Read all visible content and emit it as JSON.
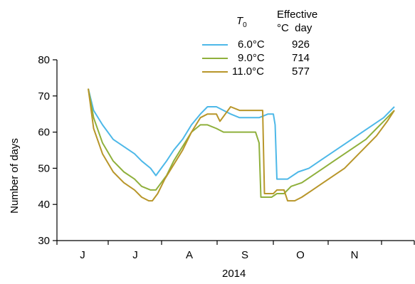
{
  "chart_data": {
    "type": "line",
    "xlabel": "2014",
    "ylabel": "Number of days",
    "ylim": [
      30,
      80
    ],
    "yticks": [
      30,
      40,
      50,
      60,
      70,
      80
    ],
    "x_tick_labels": [
      "J",
      "J",
      "A",
      "S",
      "O",
      "N"
    ],
    "grid": false,
    "legend_placement": "top-center",
    "legend_header": {
      "t0_symbol": "T",
      "t0_subscript": "0",
      "effective_line1": "Effective",
      "effective_line2": "°C  day"
    },
    "series": [
      {
        "name": "6.0°C",
        "effective_degree_days": "926",
        "color": "#4db8e8",
        "points": [
          [
            0,
            72
          ],
          [
            3,
            66
          ],
          [
            8,
            62
          ],
          [
            14,
            58
          ],
          [
            20,
            56
          ],
          [
            26,
            54
          ],
          [
            30,
            52
          ],
          [
            35,
            50
          ],
          [
            38,
            48
          ],
          [
            41,
            50
          ],
          [
            44,
            52
          ],
          [
            48,
            55
          ],
          [
            53,
            58
          ],
          [
            58,
            62
          ],
          [
            63,
            65
          ],
          [
            67,
            67
          ],
          [
            72,
            67
          ],
          [
            76,
            66
          ],
          [
            80,
            65
          ],
          [
            85,
            64
          ],
          [
            90,
            64
          ],
          [
            96,
            64
          ],
          [
            101,
            65
          ],
          [
            104,
            65
          ],
          [
            105,
            62
          ],
          [
            106,
            47
          ],
          [
            112,
            47
          ],
          [
            118,
            49
          ],
          [
            124,
            50
          ],
          [
            130,
            52
          ],
          [
            136,
            54
          ],
          [
            142,
            56
          ],
          [
            148,
            58
          ],
          [
            154,
            60
          ],
          [
            160,
            62
          ],
          [
            166,
            64
          ],
          [
            172,
            67
          ]
        ]
      },
      {
        "name": "9.0°C",
        "effective_degree_days": "714",
        "color": "#8fb03c",
        "points": [
          [
            0,
            72
          ],
          [
            3,
            64
          ],
          [
            8,
            57
          ],
          [
            14,
            52
          ],
          [
            20,
            49
          ],
          [
            26,
            47
          ],
          [
            30,
            45
          ],
          [
            35,
            44
          ],
          [
            38,
            44
          ],
          [
            41,
            46
          ],
          [
            44,
            48
          ],
          [
            48,
            52
          ],
          [
            53,
            56
          ],
          [
            58,
            60
          ],
          [
            63,
            62
          ],
          [
            67,
            62
          ],
          [
            72,
            61
          ],
          [
            76,
            60
          ],
          [
            80,
            60
          ],
          [
            85,
            60
          ],
          [
            90,
            60
          ],
          [
            94,
            60
          ],
          [
            96,
            57
          ],
          [
            97,
            42
          ],
          [
            103,
            42
          ],
          [
            106,
            43
          ],
          [
            110,
            43
          ],
          [
            114,
            45
          ],
          [
            120,
            46
          ],
          [
            126,
            48
          ],
          [
            132,
            50
          ],
          [
            138,
            52
          ],
          [
            144,
            54
          ],
          [
            150,
            56
          ],
          [
            156,
            58
          ],
          [
            162,
            61
          ],
          [
            166,
            63
          ],
          [
            172,
            66
          ]
        ]
      },
      {
        "name": "11.0°C",
        "effective_degree_days": "577",
        "color": "#b8962a",
        "points": [
          [
            0,
            72
          ],
          [
            3,
            61
          ],
          [
            8,
            54
          ],
          [
            14,
            49
          ],
          [
            20,
            46
          ],
          [
            26,
            44
          ],
          [
            30,
            42
          ],
          [
            34,
            41
          ],
          [
            36,
            41
          ],
          [
            39,
            43
          ],
          [
            43,
            47
          ],
          [
            48,
            51
          ],
          [
            53,
            55
          ],
          [
            58,
            60
          ],
          [
            63,
            64
          ],
          [
            67,
            65
          ],
          [
            72,
            65
          ],
          [
            74,
            63
          ],
          [
            77,
            65
          ],
          [
            80,
            67
          ],
          [
            85,
            66
          ],
          [
            90,
            66
          ],
          [
            96,
            66
          ],
          [
            98,
            66
          ],
          [
            99,
            43
          ],
          [
            104,
            43
          ],
          [
            106,
            44
          ],
          [
            110,
            44
          ],
          [
            112,
            41
          ],
          [
            116,
            41
          ],
          [
            120,
            42
          ],
          [
            126,
            44
          ],
          [
            132,
            46
          ],
          [
            138,
            48
          ],
          [
            144,
            50
          ],
          [
            150,
            53
          ],
          [
            156,
            56
          ],
          [
            162,
            59
          ],
          [
            168,
            63
          ],
          [
            172,
            66
          ]
        ]
      }
    ]
  }
}
